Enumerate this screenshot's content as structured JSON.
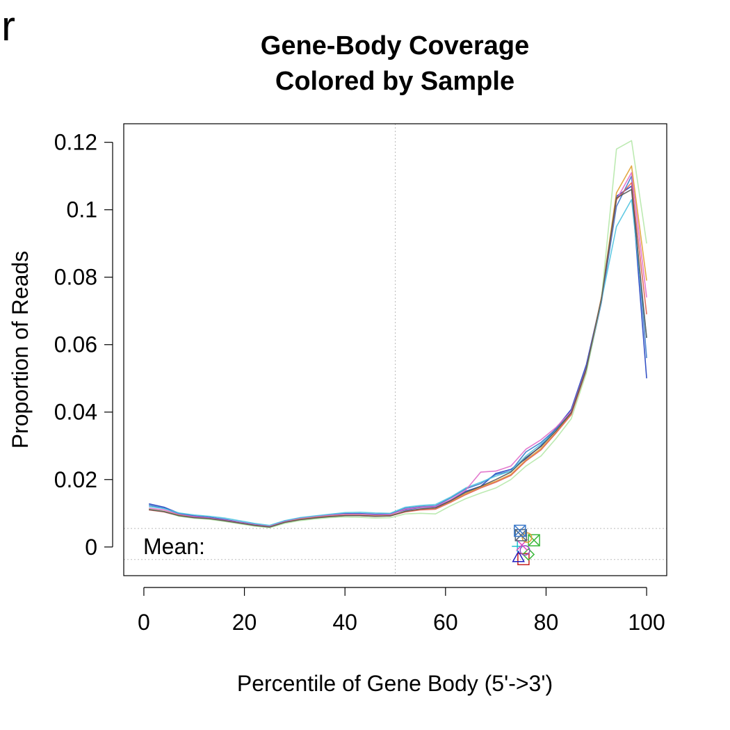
{
  "panel_label": "r",
  "chart_data": {
    "type": "line",
    "title": "Gene-Body Coverage",
    "subtitle": "Colored by Sample",
    "xlabel": "Percentile of Gene Body (5'->3')",
    "ylabel": "Proportion of Reads",
    "xlim": [
      -4,
      104
    ],
    "ylim": [
      -0.0085,
      0.1255
    ],
    "x_ticks": [
      0,
      20,
      40,
      60,
      80,
      100
    ],
    "x_tick_labels": [
      "0",
      "20",
      "40",
      "60",
      "80",
      "100"
    ],
    "y_ticks": [
      0,
      0.02,
      0.04,
      0.06,
      0.08,
      0.1,
      0.12
    ],
    "y_tick_labels": [
      "0",
      "0.02",
      "0.04",
      "0.06",
      "0.08",
      "0.1",
      "0.12"
    ],
    "reference_lines": {
      "vertical_x": 50,
      "horizontal_y": [
        0.0055,
        -0.0037
      ]
    },
    "grid": false,
    "legend": "none",
    "mean_label": "Mean:",
    "x": [
      1,
      4,
      7,
      10,
      13,
      16,
      19,
      22,
      25,
      28,
      31,
      34,
      37,
      40,
      43,
      46,
      49,
      52,
      55,
      58,
      61,
      64,
      67,
      70,
      73,
      76,
      79,
      82,
      85,
      88,
      91,
      94,
      97,
      100
    ],
    "series": [
      {
        "color": "#1f3fbf",
        "values": [
          0.0128,
          0.0118,
          0.01,
          0.0092,
          0.0088,
          0.0082,
          0.0074,
          0.0067,
          0.0062,
          0.0077,
          0.0086,
          0.009,
          0.0096,
          0.0099,
          0.0099,
          0.0097,
          0.0098,
          0.011,
          0.0117,
          0.0119,
          0.0138,
          0.0165,
          0.018,
          0.0218,
          0.023,
          0.0262,
          0.03,
          0.0352,
          0.0408,
          0.054,
          0.0735,
          0.104,
          0.107,
          0.05
        ]
      },
      {
        "color": "#3a78c9",
        "values": [
          0.0124,
          0.0115,
          0.0098,
          0.009,
          0.0086,
          0.008,
          0.0072,
          0.0066,
          0.0061,
          0.0075,
          0.0084,
          0.0089,
          0.0094,
          0.0098,
          0.0098,
          0.0096,
          0.0097,
          0.0115,
          0.012,
          0.0122,
          0.0145,
          0.0172,
          0.0188,
          0.0215,
          0.0225,
          0.0282,
          0.031,
          0.035,
          0.04,
          0.052,
          0.0725,
          0.101,
          0.11,
          0.056
        ]
      },
      {
        "color": "#4fc3e0",
        "values": [
          0.012,
          0.0114,
          0.0101,
          0.0095,
          0.0091,
          0.0086,
          0.0078,
          0.007,
          0.0064,
          0.0078,
          0.0087,
          0.0092,
          0.0097,
          0.0102,
          0.0103,
          0.0101,
          0.01,
          0.0118,
          0.0123,
          0.0126,
          0.0148,
          0.0175,
          0.0192,
          0.021,
          0.0225,
          0.027,
          0.0305,
          0.0345,
          0.0398,
          0.0528,
          0.073,
          0.095,
          0.103,
          0.062
        ]
      },
      {
        "color": "#e06ac8",
        "values": [
          0.0115,
          0.011,
          0.0096,
          0.009,
          0.0086,
          0.008,
          0.0073,
          0.0066,
          0.0061,
          0.0075,
          0.0084,
          0.0089,
          0.0094,
          0.0097,
          0.0097,
          0.0095,
          0.0096,
          0.0112,
          0.0118,
          0.012,
          0.014,
          0.0168,
          0.0222,
          0.0225,
          0.024,
          0.029,
          0.0318,
          0.0355,
          0.0402,
          0.053,
          0.0735,
          0.103,
          0.111,
          0.074
        ]
      },
      {
        "color": "#e0a030",
        "values": [
          0.0112,
          0.0106,
          0.0094,
          0.0087,
          0.0084,
          0.0078,
          0.0071,
          0.0064,
          0.0059,
          0.0073,
          0.0082,
          0.0087,
          0.0091,
          0.0094,
          0.0094,
          0.0092,
          0.0093,
          0.0106,
          0.0112,
          0.0115,
          0.0135,
          0.0158,
          0.0178,
          0.0195,
          0.0215,
          0.0258,
          0.0292,
          0.034,
          0.0395,
          0.0525,
          0.074,
          0.105,
          0.113,
          0.079
        ]
      },
      {
        "color": "#e06050",
        "values": [
          0.011,
          0.0104,
          0.0092,
          0.0086,
          0.0083,
          0.0077,
          0.007,
          0.0063,
          0.0058,
          0.0072,
          0.008,
          0.0086,
          0.009,
          0.0093,
          0.0093,
          0.0091,
          0.0092,
          0.0104,
          0.011,
          0.0112,
          0.0132,
          0.0155,
          0.0175,
          0.0192,
          0.0212,
          0.0255,
          0.0288,
          0.0338,
          0.0392,
          0.0522,
          0.0738,
          0.103,
          0.108,
          0.069
        ]
      },
      {
        "color": "#b5e8a8",
        "values": [
          0.0112,
          0.0106,
          0.0091,
          0.0085,
          0.0082,
          0.0076,
          0.0069,
          0.0062,
          0.0057,
          0.007,
          0.0078,
          0.0083,
          0.0087,
          0.0089,
          0.0088,
          0.0086,
          0.0087,
          0.0098,
          0.01,
          0.0098,
          0.0122,
          0.0143,
          0.016,
          0.0175,
          0.02,
          0.024,
          0.027,
          0.0322,
          0.038,
          0.0515,
          0.0735,
          0.118,
          0.1205,
          0.09
        ]
      },
      {
        "color": "#555555",
        "values": [
          0.0111,
          0.0105,
          0.0093,
          0.0087,
          0.0084,
          0.0078,
          0.0071,
          0.0064,
          0.0059,
          0.0073,
          0.0081,
          0.0086,
          0.009,
          0.0093,
          0.0093,
          0.0091,
          0.0092,
          0.0106,
          0.0113,
          0.0116,
          0.0137,
          0.0162,
          0.018,
          0.02,
          0.0222,
          0.0265,
          0.0298,
          0.0345,
          0.0398,
          0.0528,
          0.0735,
          0.1035,
          0.106,
          0.062
        ]
      }
    ],
    "mean_markers": [
      {
        "shape": "square",
        "color": "#c82020",
        "x": 75.5,
        "y": -0.0036
      },
      {
        "shape": "triangle",
        "color": "#1f1fbf",
        "x": 74.5,
        "y": -0.003
      },
      {
        "shape": "diamond",
        "color": "#3ab83a",
        "x": 76.5,
        "y": -0.0022
      },
      {
        "shape": "circle",
        "color": "#8a4fbf",
        "x": 75.8,
        "y": -0.001
      },
      {
        "shape": "plus",
        "color": "#20c0d0",
        "x": 74.3,
        "y": 0.0002
      },
      {
        "shape": "x-cross",
        "color": "#e040c0",
        "x": 75.2,
        "y": 0.0006
      },
      {
        "shape": "square-x",
        "color": "#3ab83a",
        "x": 77.6,
        "y": 0.002
      },
      {
        "shape": "circle",
        "color": "#e0a030",
        "x": 76.2,
        "y": 0.0028
      },
      {
        "shape": "square-x",
        "color": "#556677",
        "x": 75.0,
        "y": 0.0035
      },
      {
        "shape": "square-x",
        "color": "#3a78c9",
        "x": 74.8,
        "y": 0.0048
      }
    ]
  }
}
